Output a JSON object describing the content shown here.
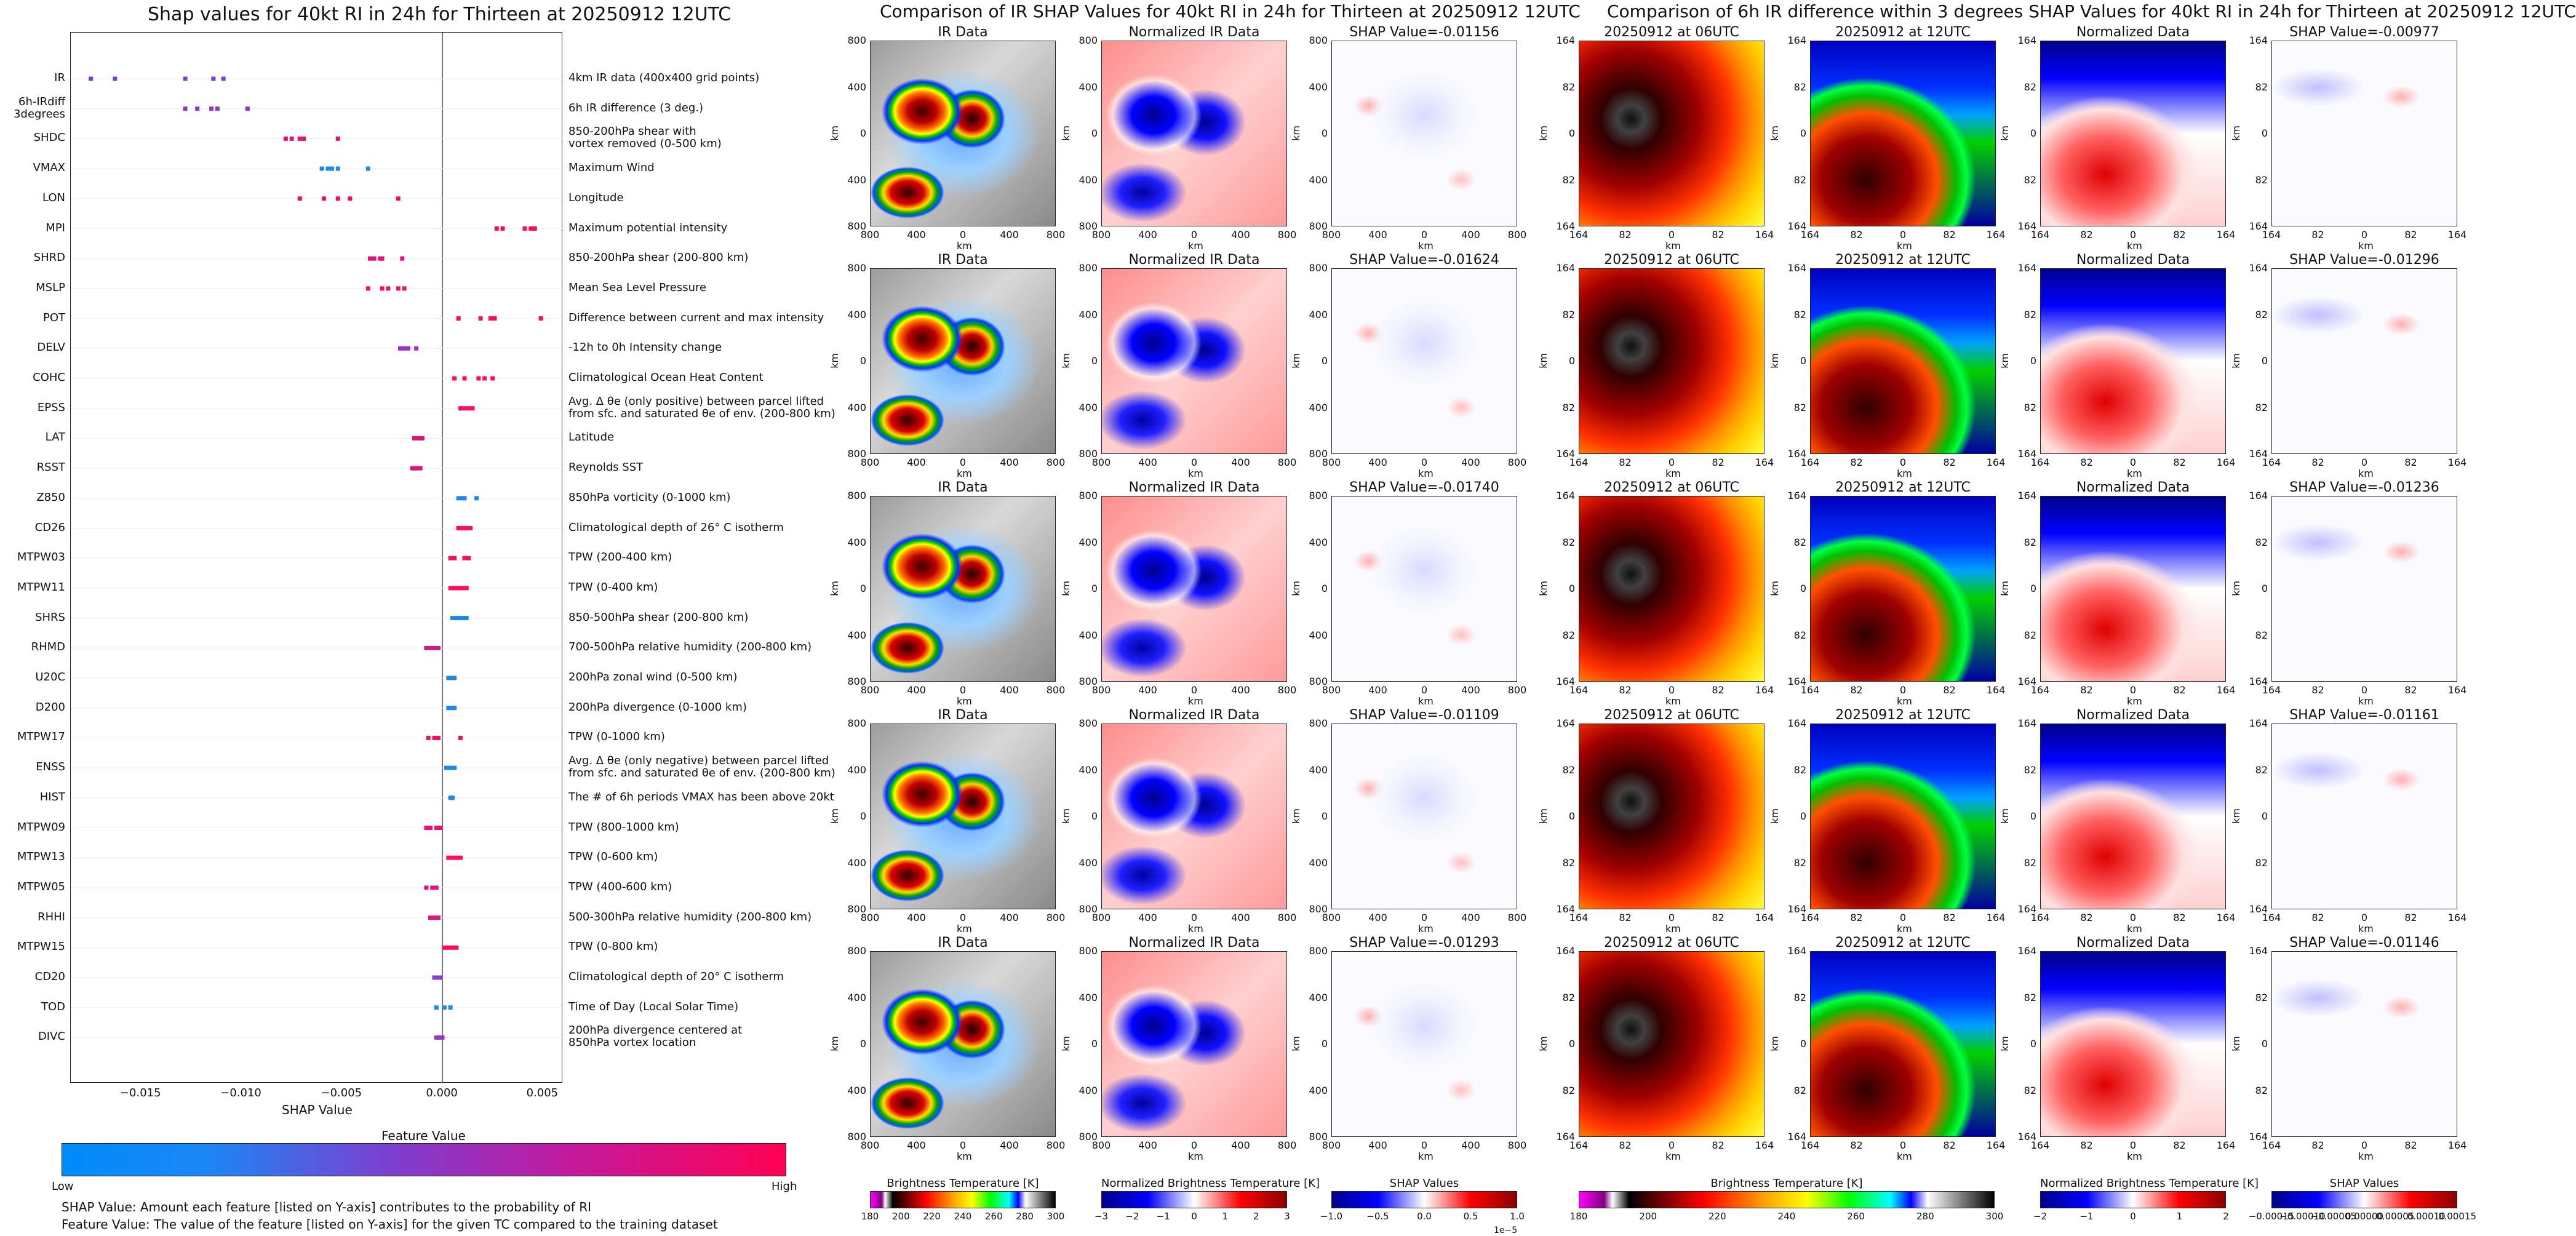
{
  "shap_section": {
    "title": "Shap values for 40kt RI in 24h for Thirteen at 20250912 12UTC",
    "xlabel": "SHAP Value",
    "x_ticks": [
      "−0.015",
      "−0.010",
      "−0.005",
      "0.000",
      "0.005"
    ],
    "colorbar_title": "Feature Value",
    "colorbar_low": "Low",
    "colorbar_high": "High",
    "note_1": "SHAP Value: Amount each feature [listed on Y-axis] contributes to the probability of RI",
    "note_2": "Feature Value: The value of the feature [listed on Y-axis] for the given TC compared to the training dataset",
    "colors": {
      "low": "#1e88e5",
      "high": "#ff0d57"
    }
  },
  "chart_data": {
    "type": "scatter",
    "title": "Shap values for 40kt RI in 24h for Thirteen at 20250912 12UTC",
    "xlabel": "SHAP Value",
    "xlim": [
      -0.0185,
      0.006
    ],
    "features": [
      {
        "name": "IR",
        "desc": "4km IR data (400x400 grid points)",
        "values": [
          -0.0175,
          -0.0163,
          -0.0128,
          -0.0114,
          -0.0109
        ],
        "color": "#7b3fd0"
      },
      {
        "name": "6h-IRdiff\n3degrees",
        "desc": "6h IR difference (3 deg.)",
        "values": [
          -0.0128,
          -0.0122,
          -0.0115,
          -0.0112,
          -0.0097
        ],
        "color": "#8a3cc8"
      },
      {
        "name": "SHDC",
        "desc": "850-200hPa shear with\nvortex removed (0-500 km)",
        "values": [
          -0.0078,
          -0.0075,
          -0.0071,
          -0.0069,
          -0.0052
        ],
        "color": "#e0157a"
      },
      {
        "name": "VMAX",
        "desc": "Maximum Wind",
        "values": [
          -0.006,
          -0.0057,
          -0.0055,
          -0.0052,
          -0.0037
        ],
        "color": "#1e88e5"
      },
      {
        "name": "LON",
        "desc": "Longitude",
        "values": [
          -0.0071,
          -0.0059,
          -0.0052,
          -0.0046,
          -0.0022
        ],
        "color": "#f2105f"
      },
      {
        "name": "MPI",
        "desc": "Maximum potential intensity",
        "values": [
          0.0027,
          0.003,
          0.0041,
          0.0044,
          0.0046
        ],
        "color": "#ff0d57"
      },
      {
        "name": "SHRD",
        "desc": "850-200hPa shear (200-800 km)",
        "values": [
          -0.0036,
          -0.0034,
          -0.0031,
          -0.003,
          -0.002
        ],
        "color": "#e8127a"
      },
      {
        "name": "MSLP",
        "desc": "Mean Sea Level Pressure",
        "values": [
          -0.0037,
          -0.003,
          -0.0027,
          -0.0022,
          -0.0019
        ],
        "color": "#f01065"
      },
      {
        "name": "POT",
        "desc": "Difference between current and max intensity",
        "values": [
          0.0008,
          0.0019,
          0.0024,
          0.0026,
          0.0049
        ],
        "color": "#ff0d57"
      },
      {
        "name": "DELV",
        "desc": "-12h to 0h Intensity change",
        "values": [
          -0.0021,
          -0.0019,
          -0.0017,
          -0.0013
        ],
        "color": "#9a35c0"
      },
      {
        "name": "COHC",
        "desc": "Climatological Ocean Heat Content",
        "values": [
          0.0006,
          0.0011,
          0.0018,
          0.0021,
          0.0025
        ],
        "color": "#ff0d57"
      },
      {
        "name": "EPSS",
        "desc": "Avg. Δ θe (only positive) between parcel lifted\nfrom sfc. and saturated θe of env. (200-800 km)",
        "values": [
          0.0009,
          0.0011,
          0.0013,
          0.0015
        ],
        "color": "#f5106a"
      },
      {
        "name": "LAT",
        "desc": "Latitude",
        "values": [
          -0.0014,
          -0.0013,
          -0.0012,
          -0.0011,
          -0.001
        ],
        "color": "#e0157a"
      },
      {
        "name": "RSST",
        "desc": "Reynolds SST",
        "values": [
          -0.0015,
          -0.0014,
          -0.0013,
          -0.0012,
          -0.0011
        ],
        "color": "#d8187e"
      },
      {
        "name": "Z850",
        "desc": "850hPa vorticity (0-1000 km)",
        "values": [
          0.0008,
          0.001,
          0.0011,
          0.0017
        ],
        "color": "#1e88e5"
      },
      {
        "name": "CD26",
        "desc": "Climatological depth of 26° C isotherm",
        "values": [
          0.0008,
          0.0009,
          0.0011,
          0.0012,
          0.0014
        ],
        "color": "#ff0d57"
      },
      {
        "name": "MTPW03",
        "desc": "TPW (200-400 km)",
        "values": [
          0.0004,
          0.0006,
          0.0011,
          0.0013
        ],
        "color": "#ff0d57"
      },
      {
        "name": "MTPW11",
        "desc": "TPW (0-400 km)",
        "values": [
          0.0004,
          0.0006,
          0.0008,
          0.001,
          0.0012
        ],
        "color": "#ff0d57"
      },
      {
        "name": "SHRS",
        "desc": "850-500hPa shear (200-800 km)",
        "values": [
          0.0005,
          0.0007,
          0.0009,
          0.0011,
          0.0012
        ],
        "color": "#1e88e5"
      },
      {
        "name": "RHMD",
        "desc": "700-500hPa relative humidity (200-800 km)",
        "values": [
          -0.0008,
          -0.0006,
          -0.0004,
          -0.0002
        ],
        "color": "#c0207e"
      },
      {
        "name": "U20C",
        "desc": "200hPa zonal wind (0-500 km)",
        "values": [
          0.0003,
          0.0004,
          0.0005,
          0.0006
        ],
        "color": "#1e88e5"
      },
      {
        "name": "D200",
        "desc": "200hPa divergence (0-1000 km)",
        "values": [
          0.0003,
          0.0005,
          0.0006
        ],
        "color": "#1e88e5"
      },
      {
        "name": "MTPW17",
        "desc": "TPW (0-1000 km)",
        "values": [
          -0.0007,
          -0.0004,
          -0.0002,
          0.0009
        ],
        "color": "#f01065"
      },
      {
        "name": "ENSS",
        "desc": "Avg. Δ θe (only negative) between parcel lifted\nfrom sfc. and saturated θe of env. (200-800 km)",
        "values": [
          0.0002,
          0.0004,
          0.0006
        ],
        "color": "#1e88e5"
      },
      {
        "name": "HIST",
        "desc": "The # of 6h periods VMAX has been above 20kt",
        "values": [
          0.0004,
          0.0005
        ],
        "color": "#1e88e5"
      },
      {
        "name": "MTPW09",
        "desc": "TPW (800-1000 km)",
        "values": [
          -0.0008,
          -0.0006,
          -0.0003,
          -0.0001
        ],
        "color": "#e8127a"
      },
      {
        "name": "MTPW13",
        "desc": "TPW (0-600 km)",
        "values": [
          0.0003,
          0.0005,
          0.0007,
          0.0009
        ],
        "color": "#ff0d57"
      },
      {
        "name": "MTPW05",
        "desc": "TPW (400-600 km)",
        "values": [
          -0.0008,
          -0.0005,
          -0.0003
        ],
        "color": "#e8127a"
      },
      {
        "name": "RHHI",
        "desc": "500-300hPa relative humidity (200-800 km)",
        "values": [
          -0.0006,
          -0.0004,
          -0.0002
        ],
        "color": "#e01580"
      },
      {
        "name": "MTPW15",
        "desc": "TPW (0-800 km)",
        "values": [
          0.0001,
          0.0003,
          0.0005,
          0.0007
        ],
        "color": "#ff0d57"
      },
      {
        "name": "CD20",
        "desc": "Climatological depth of 20° C isotherm",
        "values": [
          -0.0004,
          -0.0003,
          -0.0002,
          -0.0001
        ],
        "color": "#8a3cc8"
      },
      {
        "name": "TOD",
        "desc": "Time of Day (Local Solar Time)",
        "values": [
          -0.0003,
          0.0001,
          0.0004
        ],
        "color": "#1e88e5"
      },
      {
        "name": "DIVC",
        "desc": "200hPa divergence centered at\n850hPa vortex location",
        "values": [
          -0.0003,
          -0.0001,
          0.0
        ],
        "color": "#9a35c0"
      }
    ]
  },
  "ir_section": {
    "title": "Comparison of IR SHAP Values for 40kt RI in 24h for Thirteen at 20250912 12UTC",
    "col_titles": [
      "IR Data",
      "Normalized IR Data"
    ],
    "shap_titles": [
      "SHAP Value=-0.01156",
      "SHAP Value=-0.01624",
      "SHAP Value=-0.01740",
      "SHAP Value=-0.01109",
      "SHAP Value=-0.01293"
    ],
    "y_ticks": [
      "800",
      "400",
      "0",
      "400",
      "800"
    ],
    "x_ticks": [
      "800",
      "400",
      "0",
      "400",
      "800"
    ],
    "axis_label": "km",
    "cbar_titles": [
      "Brightness Temperature [K]",
      "Normalized Brightness Temperature [K]",
      "SHAP Values"
    ],
    "cbar_ticks_1": [
      "180",
      "200",
      "220",
      "240",
      "260",
      "280",
      "300"
    ],
    "cbar_ticks_2": [
      "−3",
      "−2",
      "−1",
      "0",
      "1",
      "2",
      "3"
    ],
    "cbar_ticks_3": [
      "−1.0",
      "−0.5",
      "0.0",
      "0.5",
      "1.0"
    ],
    "cbar_exponent": "1e−5"
  },
  "diff_section": {
    "title": "Comparison of 6h IR difference within 3 degrees SHAP Values for 40kt RI in 24h for Thirteen at 20250912 12UTC",
    "col_titles": [
      "20250912 at 06UTC",
      "20250912 at 12UTC",
      "Normalized Data"
    ],
    "shap_titles": [
      "SHAP Value=-0.00977",
      "SHAP Value=-0.01296",
      "SHAP Value=-0.01236",
      "SHAP Value=-0.01161",
      "SHAP Value=-0.01146"
    ],
    "y_ticks": [
      "164",
      "82",
      "0",
      "82",
      "164"
    ],
    "x_ticks": [
      "164",
      "82",
      "0",
      "82",
      "164"
    ],
    "axis_label": "km",
    "cbar_titles": [
      "Brightness Temperature [K]",
      "Normalized Brightness Temperature [K]",
      "SHAP Values"
    ],
    "cbar_ticks_1": [
      "180",
      "200",
      "220",
      "240",
      "260",
      "280",
      "300"
    ],
    "cbar_ticks_2": [
      "−2",
      "−1",
      "0",
      "1",
      "2"
    ],
    "cbar_ticks_3": [
      "−0.00015",
      "−0.00010",
      "−0.00005",
      "0.00000",
      "0.00005",
      "0.00010",
      "0.00015"
    ]
  }
}
